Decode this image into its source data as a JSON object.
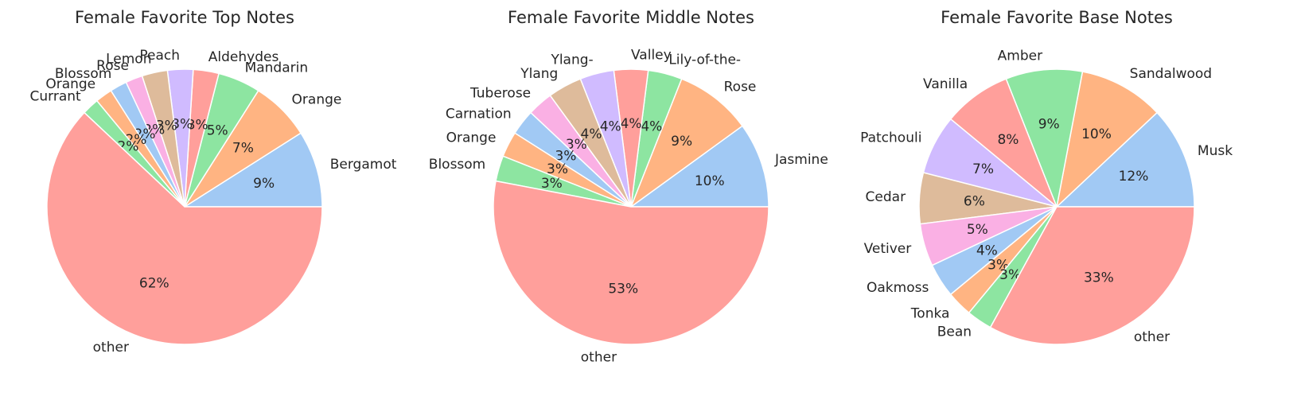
{
  "chart_data": [
    {
      "type": "pie",
      "title": "Female Favorite Top Notes",
      "categories": [
        "Bergamot",
        "Orange",
        "Mandarin",
        "Aldehydes",
        "Peach",
        "Lemon",
        "Rose",
        "Blossom",
        "Orange",
        "Currant",
        "other"
      ],
      "values": [
        9,
        7,
        5,
        3,
        3,
        3,
        2,
        2,
        2,
        2,
        62
      ],
      "colors": [
        "#a1c9f4",
        "#ffb482",
        "#8de5a1",
        "#ff9f9b",
        "#d0bbff",
        "#debb9b",
        "#fab0e4",
        "#a1c9f4",
        "#ffb482",
        "#8de5a1",
        "#ff9f9b"
      ]
    },
    {
      "type": "pie",
      "title": "Female Favorite Middle Notes",
      "categories": [
        "Jasmine",
        "Rose",
        "Lily-of-the-",
        "Valley",
        "Ylang-",
        "Ylang",
        "Tuberose",
        "Carnation",
        "Orange",
        "Blossom",
        "other"
      ],
      "values": [
        10,
        9,
        4,
        4,
        4,
        4,
        3,
        3,
        3,
        3,
        53
      ],
      "colors": [
        "#a1c9f4",
        "#ffb482",
        "#8de5a1",
        "#ff9f9b",
        "#d0bbff",
        "#debb9b",
        "#fab0e4",
        "#a1c9f4",
        "#ffb482",
        "#8de5a1",
        "#ff9f9b"
      ]
    },
    {
      "type": "pie",
      "title": "Female Favorite Base Notes",
      "categories": [
        "Musk",
        "Sandalwood",
        "Amber",
        "Vanilla",
        "Patchouli",
        "Cedar",
        "Vetiver",
        "Oakmoss",
        "Tonka",
        "Bean",
        "other"
      ],
      "values": [
        12,
        10,
        9,
        8,
        7,
        6,
        5,
        4,
        3,
        3,
        33
      ],
      "colors": [
        "#a1c9f4",
        "#ffb482",
        "#8de5a1",
        "#ff9f9b",
        "#d0bbff",
        "#debb9b",
        "#fab0e4",
        "#a1c9f4",
        "#ffb482",
        "#8de5a1",
        "#ff9f9b"
      ]
    }
  ]
}
